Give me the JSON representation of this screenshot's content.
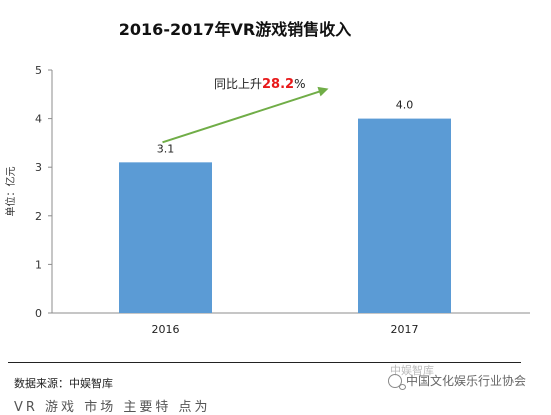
{
  "chart_data": {
    "type": "bar",
    "title": "2016-2017年VR游戏销售收入",
    "ylabel": "单位：亿元",
    "xlabel": "",
    "categories": [
      "2016",
      "2017"
    ],
    "values": [
      3.1,
      4.0
    ],
    "data_labels": [
      "3.1",
      "4.0"
    ],
    "ylim": [
      0,
      5
    ],
    "yticks": [
      0,
      1,
      2,
      3,
      4,
      5
    ],
    "grid": false,
    "bar_color": "#5b9bd5",
    "annotation": {
      "prefix": "同比上升",
      "value": "28.2",
      "suffix": "%",
      "value_color": "#e8191a",
      "arrow_color": "#70ad47"
    }
  },
  "footer": {
    "source": "数据来源：中娱智库",
    "watermark": "中国文化娱乐行业协会",
    "watermark_ghost": "中娱智库",
    "cut_text": "VR 游戏 市场 主要特 点为"
  }
}
